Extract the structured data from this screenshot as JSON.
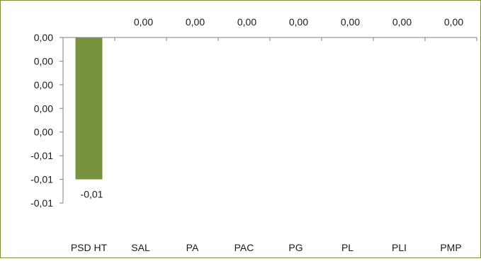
{
  "chart_data": {
    "type": "bar",
    "categories": [
      "PSD HT",
      "SAL",
      "PA",
      "PAC",
      "PG",
      "PL",
      "PLI",
      "PMP"
    ],
    "values": [
      -0.012,
      0,
      0,
      0,
      0,
      0,
      0,
      0
    ],
    "data_labels": [
      "-0,01",
      "0,00",
      "0,00",
      "0,00",
      "0,00",
      "0,00",
      "0,00",
      "0,00"
    ],
    "y_tick_labels": [
      "0,00",
      "0,00",
      "0,00",
      "0,00",
      "0,00",
      "-0,01",
      "-0,01",
      "-0,01"
    ],
    "ylim": [
      -0.014,
      0
    ],
    "bar_color": "#77933c",
    "axis_color": "#808080",
    "frame_color": "#76933c",
    "title": "",
    "xlabel": "",
    "ylabel": "",
    "grid": false,
    "legend": "none"
  }
}
